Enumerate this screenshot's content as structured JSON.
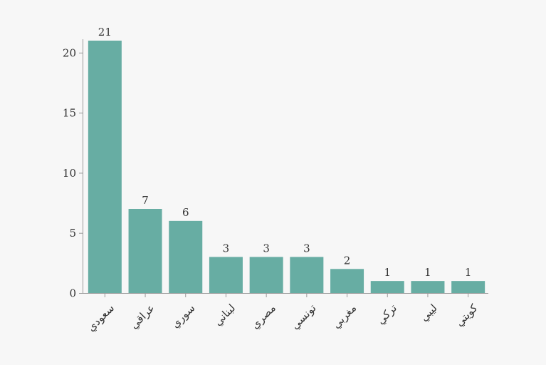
{
  "chart_data": {
    "type": "bar",
    "categories": [
      "سعودي",
      "عراقي",
      "سوري",
      "لبناني",
      "مصري",
      "تونسي",
      "مغربي",
      "تركي",
      "ليبي",
      "كويتي"
    ],
    "values": [
      21,
      7,
      6,
      3,
      3,
      3,
      2,
      1,
      1,
      1
    ],
    "yticks": [
      0,
      5,
      10,
      15,
      20
    ],
    "ylim": [
      0,
      21
    ],
    "title": "",
    "xlabel": "",
    "ylabel": "",
    "grid": false,
    "bar_color": "#67ada3",
    "axis_color": "#999999",
    "text_color": "#333333",
    "background": "#f7f7f7"
  }
}
